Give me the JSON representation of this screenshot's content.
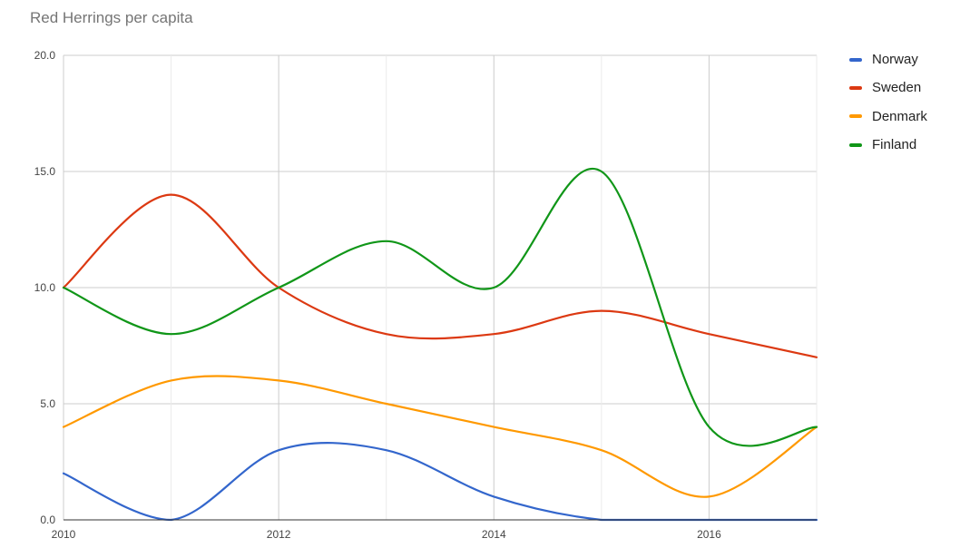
{
  "chart_data": {
    "type": "line",
    "title": "Red Herrings per capita",
    "xlabel": "",
    "ylabel": "",
    "x": [
      2010,
      2011,
      2012,
      2013,
      2014,
      2015,
      2016,
      2017
    ],
    "xlim": [
      2010,
      2017
    ],
    "ylim": [
      0,
      20
    ],
    "x_ticks": [
      "2010",
      "2012",
      "2014",
      "2016"
    ],
    "y_ticks": [
      "0.0",
      "5.0",
      "10.0",
      "15.0",
      "20.0"
    ],
    "grid": true,
    "smooth": true,
    "legend_position": "right",
    "series": [
      {
        "name": "Norway",
        "color": "#3366cc",
        "values": [
          2,
          0,
          3,
          3,
          1,
          0,
          0,
          0
        ]
      },
      {
        "name": "Sweden",
        "color": "#dc3912",
        "values": [
          10,
          14,
          10,
          8,
          8,
          9,
          8,
          7
        ]
      },
      {
        "name": "Denmark",
        "color": "#ff9900",
        "values": [
          4,
          6,
          6,
          5,
          4,
          3,
          1,
          4
        ]
      },
      {
        "name": "Finland",
        "color": "#109618",
        "values": [
          10,
          8,
          10,
          12,
          10,
          15,
          4,
          4
        ]
      }
    ]
  }
}
